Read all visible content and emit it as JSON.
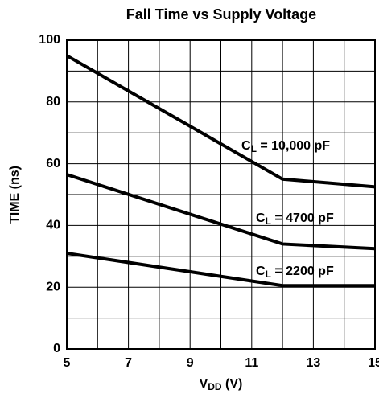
{
  "chart_data": {
    "type": "line",
    "title": "Fall Time vs Supply Voltage",
    "x_label": "VDD (V)",
    "y_label": "TIME (ns)",
    "xlim": [
      5,
      15
    ],
    "ylim": [
      0,
      100
    ],
    "xticks": [
      5,
      7,
      9,
      11,
      13,
      15
    ],
    "yticks": [
      0,
      20,
      40,
      60,
      80,
      100
    ],
    "xgrid": [
      5,
      6,
      7,
      8,
      9,
      10,
      11,
      12,
      13,
      14,
      15
    ],
    "ygrid": [
      0,
      10,
      20,
      30,
      40,
      50,
      60,
      70,
      80,
      90,
      100
    ],
    "x": [
      5,
      12,
      15
    ],
    "series": [
      {
        "name": "CL = 10,000 pF",
        "color": "#000000",
        "values": [
          95,
          55,
          52.5
        ]
      },
      {
        "name": "CL = 4700 pF",
        "color": "#000000",
        "values": [
          56.5,
          34,
          32.5
        ]
      },
      {
        "name": "CL = 2200 pF",
        "color": "#000000",
        "values": [
          31,
          20.5,
          20.5
        ]
      }
    ]
  }
}
